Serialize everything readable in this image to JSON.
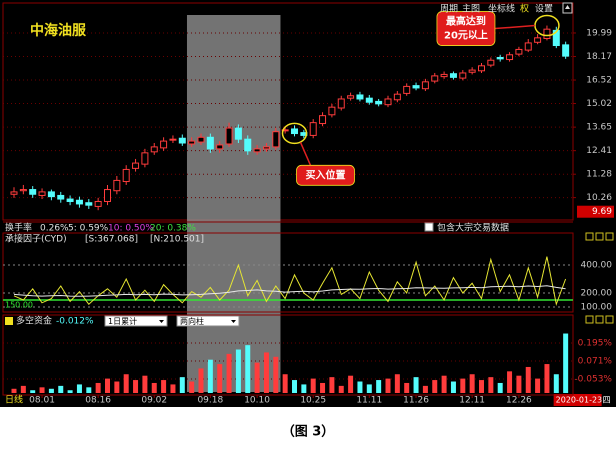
{
  "chart_data": [
    {
      "type": "candlestick",
      "title": "中海油服",
      "categories": [
        null,
        null,
        null,
        "08.01",
        null,
        null,
        null,
        null,
        null,
        "08.16",
        null,
        null,
        null,
        null,
        null,
        "09.02",
        null,
        null,
        null,
        null,
        null,
        "09.18",
        null,
        null,
        null,
        null,
        "10.10",
        null,
        null,
        null,
        null,
        null,
        "10.25",
        null,
        null,
        null,
        null,
        null,
        "11.11",
        null,
        null,
        null,
        null,
        "11.26",
        null,
        null,
        null,
        null,
        null,
        "12.11",
        null,
        null,
        null,
        null,
        "12.26",
        null,
        null,
        null,
        null,
        "2020-01-23"
      ],
      "weekday": "四",
      "open": [
        10.4,
        10.55,
        10.6,
        10.35,
        10.5,
        10.35,
        10.2,
        10.15,
        10.05,
        9.9,
        10.1,
        10.55,
        10.95,
        11.55,
        11.75,
        12.35,
        12.55,
        12.95,
        13.05,
        12.75,
        12.85,
        13.1,
        12.5,
        12.75,
        13.6,
        13.0,
        12.35,
        12.5,
        12.6,
        13.45,
        13.55,
        13.35,
        13.2,
        13.85,
        14.35,
        14.75,
        15.35,
        15.55,
        15.35,
        15.15,
        14.95,
        15.25,
        15.65,
        16.15,
        15.95,
        16.45,
        16.75,
        16.95,
        16.65,
        17.05,
        17.15,
        17.55,
        18.1,
        17.95,
        18.35,
        18.65,
        19.25,
        19.55,
        20.2,
        19.05
      ],
      "high": [
        10.7,
        10.8,
        10.75,
        10.65,
        10.6,
        10.5,
        10.35,
        10.3,
        10.2,
        10.25,
        10.8,
        11.2,
        11.7,
        12.0,
        12.5,
        12.8,
        13.1,
        13.2,
        13.25,
        13.1,
        13.3,
        13.3,
        12.9,
        13.9,
        13.8,
        13.2,
        12.7,
        12.8,
        13.6,
        13.7,
        13.75,
        13.5,
        14.1,
        14.5,
        15.0,
        15.5,
        15.7,
        15.75,
        15.55,
        15.3,
        15.5,
        15.8,
        16.3,
        16.35,
        16.6,
        17.0,
        17.1,
        17.1,
        17.2,
        17.4,
        17.7,
        18.1,
        18.3,
        18.5,
        18.9,
        19.5,
        19.9,
        20.6,
        20.5,
        19.3
      ],
      "low": [
        10.25,
        10.4,
        10.25,
        10.2,
        10.15,
        10.05,
        9.95,
        9.85,
        9.8,
        9.75,
        9.95,
        10.4,
        10.8,
        11.4,
        11.6,
        12.2,
        12.4,
        12.8,
        12.65,
        12.6,
        12.7,
        12.3,
        12.3,
        12.6,
        12.8,
        12.2,
        12.2,
        12.35,
        12.45,
        13.3,
        13.15,
        13.05,
        13.05,
        13.7,
        14.2,
        14.6,
        15.2,
        15.15,
        14.95,
        14.85,
        14.8,
        15.1,
        15.5,
        15.85,
        15.8,
        16.3,
        16.6,
        16.55,
        16.5,
        16.9,
        17.0,
        17.4,
        17.8,
        17.8,
        18.2,
        18.5,
        19.1,
        19.4,
        18.8,
        18.0
      ],
      "close": [
        10.5,
        10.6,
        10.4,
        10.5,
        10.3,
        10.2,
        10.1,
        10.0,
        9.95,
        10.1,
        10.6,
        11.0,
        11.5,
        11.8,
        12.3,
        12.6,
        12.9,
        13.0,
        12.8,
        12.9,
        13.1,
        12.5,
        12.7,
        13.6,
        13.0,
        12.4,
        12.5,
        12.6,
        13.4,
        13.5,
        13.3,
        13.2,
        13.9,
        14.3,
        14.8,
        15.3,
        15.5,
        15.3,
        15.1,
        15.0,
        15.3,
        15.6,
        16.1,
        16.0,
        16.4,
        16.8,
        16.9,
        16.7,
        17.0,
        17.2,
        17.5,
        17.9,
        18.0,
        18.3,
        18.7,
        19.2,
        19.6,
        20.3,
        19.0,
        18.2
      ],
      "ylim": [
        9.37,
        21.5
      ],
      "log_scale": true,
      "yticks": [
        19.99,
        18.17,
        16.52,
        15.02,
        13.65,
        12.41,
        11.28,
        10.26
      ],
      "marker_price": 9.69,
      "up_color": "#ff3c3c",
      "down_color": "#54fcfc",
      "grid": true,
      "highlight_range": [
        19,
        28
      ],
      "annotations": [
        {
          "lines": [
            "买入位置"
          ],
          "index": 30
        },
        {
          "lines": [
            "最高达到",
            "20元以上"
          ],
          "index": 57
        }
      ],
      "toolbar": [
        "周期",
        "主图",
        "坐标线",
        "权",
        "设置"
      ],
      "turnover": {
        "label": "换手率",
        "value": "0.26%",
        "ma": [
          "5: 0.59%",
          "10: 0.50%",
          "20: 0.38%"
        ],
        "option": "包含大宗交易数据"
      }
    },
    {
      "type": "line",
      "title": "承接因子(CYD)",
      "stats": [
        "[S:367.068]",
        "[N:210.501]"
      ],
      "series": [
        {
          "color": "#e6e632",
          "values": [
            180,
            150,
            230,
            130,
            160,
            250,
            140,
            210,
            120,
            180,
            230,
            170,
            300,
            150,
            220,
            140,
            260,
            190,
            130,
            210,
            170,
            240,
            150,
            220,
            400,
            180,
            290,
            140,
            250,
            160,
            330,
            200,
            150,
            270,
            380,
            190,
            230,
            160,
            350,
            220,
            140,
            280,
            200,
            420,
            180,
            250,
            150,
            310,
            200,
            270,
            160,
            440,
            210,
            330,
            150,
            380,
            170,
            460,
            120,
            300
          ]
        },
        {
          "color": "#e8e8e8",
          "values": [
            190,
            185,
            180,
            178,
            180,
            182,
            178,
            176,
            178,
            180,
            184,
            186,
            190,
            188,
            190,
            188,
            192,
            190,
            186,
            188,
            190,
            195,
            198,
            205,
            215,
            218,
            222,
            215,
            212,
            206,
            210,
            212,
            208,
            214,
            222,
            225,
            228,
            226,
            230,
            232,
            228,
            230,
            232,
            238,
            236,
            235,
            234,
            236,
            238,
            240,
            238,
            244,
            246,
            248,
            244,
            250,
            246,
            252,
            240,
            230
          ]
        }
      ],
      "reference": {
        "value": 150,
        "label": "150.00",
        "color": "#32e632"
      },
      "ylim": [
        64,
        543
      ],
      "yticks": [
        {
          "value": 400,
          "label": "400.00"
        },
        {
          "value": 200,
          "label": "200.00"
        },
        {
          "value": 100,
          "label": "100.00"
        }
      ]
    },
    {
      "type": "bar",
      "title": "多空资金",
      "current": "-0.012%",
      "options": [
        "1日累计",
        "两向柱"
      ],
      "values": [
        -0.12,
        -0.1,
        -0.13,
        -0.11,
        -0.12,
        -0.1,
        -0.13,
        -0.09,
        -0.11,
        -0.08,
        -0.05,
        -0.07,
        -0.02,
        -0.06,
        -0.03,
        -0.08,
        -0.06,
        -0.09,
        -0.04,
        -0.07,
        0.02,
        0.08,
        0.05,
        0.12,
        0.15,
        0.18,
        0.06,
        0.13,
        0.1,
        -0.02,
        -0.06,
        -0.09,
        -0.05,
        -0.08,
        -0.04,
        -0.1,
        -0.03,
        -0.07,
        -0.09,
        -0.06,
        -0.05,
        -0.02,
        -0.08,
        -0.04,
        -0.1,
        -0.06,
        -0.03,
        -0.07,
        -0.05,
        -0.02,
        -0.06,
        -0.04,
        -0.08,
        0.0,
        -0.03,
        0.03,
        -0.05,
        0.05,
        -0.02,
        0.26
      ],
      "ylim": [
        -0.149,
        0.298
      ],
      "yticks": [
        {
          "value": 0.195,
          "label": "0.195%"
        },
        {
          "value": 0.071,
          "label": "0.071%"
        },
        {
          "value": -0.053,
          "label": "-0.053%"
        }
      ],
      "period": "日线"
    }
  ],
  "caption": "（图 3）"
}
